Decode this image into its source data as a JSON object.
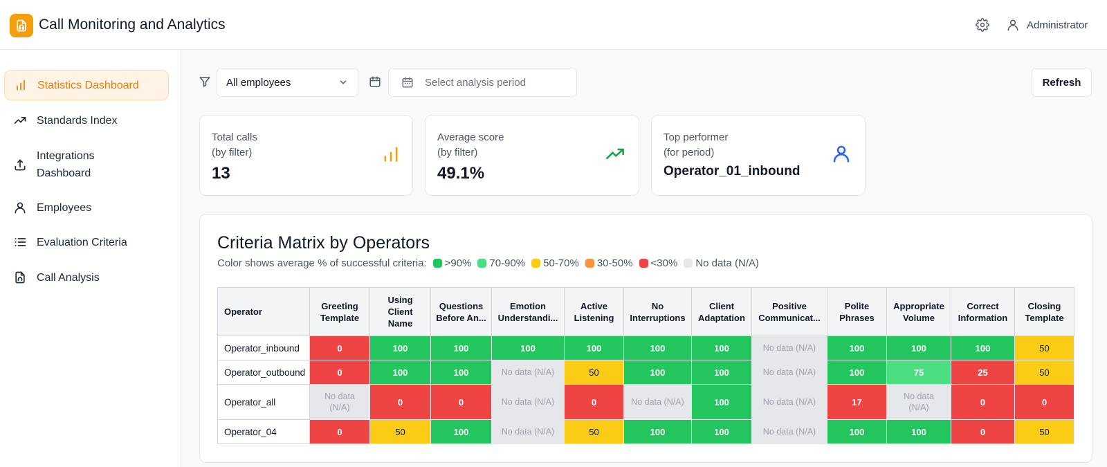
{
  "header": {
    "app_title": "Call Monitoring and Analytics",
    "user_name": "Administrator",
    "accent_color": "#f59e0b"
  },
  "sidebar": {
    "items": [
      {
        "label": "Statistics Dashboard",
        "icon": "bar-chart-icon",
        "active": true
      },
      {
        "label": "Standards Index",
        "icon": "trending-up-icon"
      },
      {
        "label": "Integrations Dashboard",
        "icon": "upload-icon"
      },
      {
        "label": "Employees",
        "icon": "user-icon"
      },
      {
        "label": "Evaluation Criteria",
        "icon": "list-icon"
      },
      {
        "label": "Call Analysis",
        "icon": "phone-file-icon"
      }
    ]
  },
  "filters": {
    "employee_select": "All employees",
    "period_placeholder": "Select analysis period",
    "refresh_label": "Refresh"
  },
  "cards": [
    {
      "label1": "Total calls",
      "label2": "(by filter)",
      "value": "13",
      "icon": "bar-chart-icon"
    },
    {
      "label1": "Average score",
      "label2": "(by filter)",
      "value": "49.1%",
      "icon": "trending-up-icon"
    },
    {
      "label1": "Top performer",
      "label2": "(for period)",
      "value": "Operator_01_inbound",
      "icon": "user-icon"
    }
  ],
  "matrix": {
    "title": "Criteria Matrix by Operators",
    "legend_intro": "Color shows average % of successful criteria:",
    "legend": [
      {
        "label": ">90%",
        "color": "#22c55e"
      },
      {
        "label": "70-90%",
        "color": "#4ade80"
      },
      {
        "label": "50-70%",
        "color": "#facc15"
      },
      {
        "label": "30-50%",
        "color": "#fb923c"
      },
      {
        "label": "<30%",
        "color": "#ef4444"
      },
      {
        "label": "No data (N/A)",
        "color": "#e5e7eb"
      }
    ],
    "operator_header": "Operator",
    "columns": [
      "Greeting Template",
      "Using Client Name",
      "Questions Before An...",
      "Emotion Understandi...",
      "Active Listening",
      "No Interruptions",
      "Client Adaptation",
      "Positive Communicat...",
      "Polite Phrases",
      "Appropriate Volume",
      "Correct Information",
      "Closing Template"
    ],
    "rows": [
      {
        "operator": "Operator_inbound",
        "cells": [
          "0",
          "100",
          "100",
          "100",
          "100",
          "100",
          "100",
          "No data (N/A)",
          "100",
          "100",
          "100",
          "50"
        ]
      },
      {
        "operator": "Operator_outbound",
        "cells": [
          "0",
          "100",
          "100",
          "No data (N/A)",
          "50",
          "100",
          "100",
          "No data (N/A)",
          "100",
          "75",
          "25",
          "50"
        ]
      },
      {
        "operator": "Operator_all",
        "cells": [
          "No data (N/A)",
          "0",
          "0",
          "No data (N/A)",
          "0",
          "No data (N/A)",
          "100",
          "No data (N/A)",
          "17",
          "No data (N/A)",
          "0",
          "0"
        ]
      },
      {
        "operator": "Operator_04",
        "cells": [
          "0",
          "50",
          "100",
          "No data (N/A)",
          "50",
          "100",
          "100",
          "No data (N/A)",
          "100",
          "100",
          "0",
          "50"
        ]
      }
    ]
  }
}
